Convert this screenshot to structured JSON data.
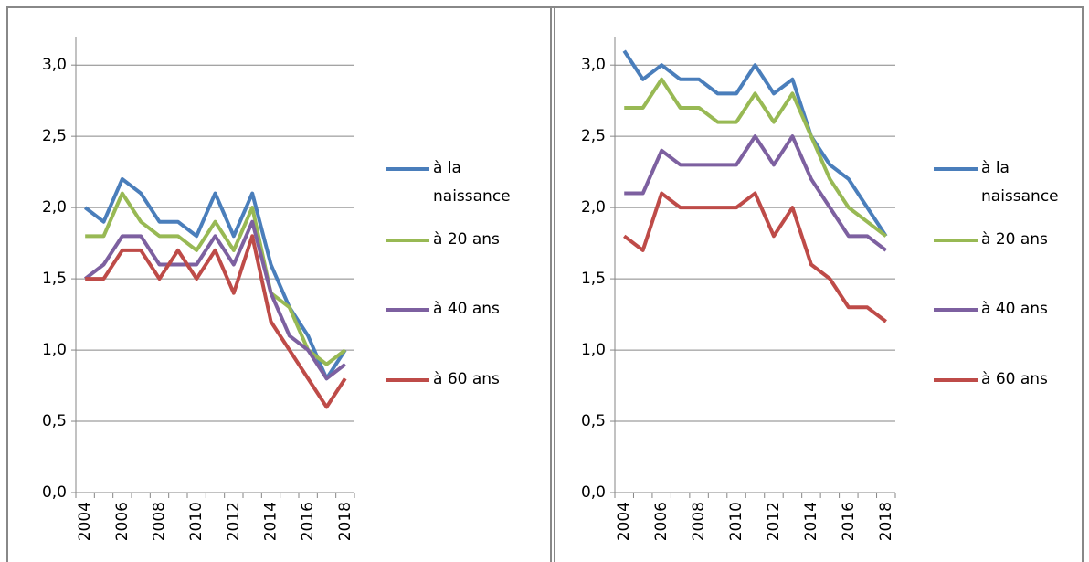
{
  "chart_data": [
    {
      "type": "line",
      "x": [
        2004,
        2005,
        2006,
        2007,
        2008,
        2009,
        2010,
        2011,
        2012,
        2013,
        2014,
        2015,
        2016,
        2017,
        2018
      ],
      "xticks": [
        2004,
        2006,
        2008,
        2010,
        2012,
        2014,
        2016,
        2018
      ],
      "ylim": [
        0,
        3.2
      ],
      "yticks": [
        {
          "value": 0,
          "label": "0,0"
        },
        {
          "value": 0.5,
          "label": "0,5"
        },
        {
          "value": 1,
          "label": "1,0"
        },
        {
          "value": 1.5,
          "label": "1,5"
        },
        {
          "value": 2,
          "label": "2,0"
        },
        {
          "value": 2.5,
          "label": "2,5"
        },
        {
          "value": 3,
          "label": "3,0"
        }
      ],
      "grid": true,
      "series": [
        {
          "name": "à la naissance",
          "color": "#4a7ebb",
          "values": [
            2.0,
            1.9,
            2.2,
            2.1,
            1.9,
            1.9,
            1.8,
            2.1,
            1.8,
            2.1,
            1.6,
            1.3,
            1.1,
            0.8,
            1.0
          ]
        },
        {
          "name": "à 20 ans",
          "color": "#98b954",
          "values": [
            1.8,
            1.8,
            2.1,
            1.9,
            1.8,
            1.8,
            1.7,
            1.9,
            1.7,
            2.0,
            1.4,
            1.3,
            1.0,
            0.9,
            1.0
          ]
        },
        {
          "name": "à 40 ans",
          "color": "#7d60a0",
          "values": [
            1.5,
            1.6,
            1.8,
            1.8,
            1.6,
            1.6,
            1.6,
            1.8,
            1.6,
            1.9,
            1.4,
            1.1,
            1.0,
            0.8,
            0.9
          ]
        },
        {
          "name": "à 60 ans",
          "color": "#be4b48",
          "values": [
            1.5,
            1.5,
            1.7,
            1.7,
            1.5,
            1.7,
            1.5,
            1.7,
            1.4,
            1.8,
            1.2,
            1.0,
            0.8,
            0.6,
            0.8
          ]
        }
      ]
    },
    {
      "type": "line",
      "x": [
        2004,
        2005,
        2006,
        2007,
        2008,
        2009,
        2010,
        2011,
        2012,
        2013,
        2014,
        2015,
        2016,
        2017,
        2018
      ],
      "xticks": [
        2004,
        2006,
        2008,
        2010,
        2012,
        2014,
        2016,
        2018
      ],
      "ylim": [
        0,
        3.2
      ],
      "yticks": [
        {
          "value": 0,
          "label": "0,0"
        },
        {
          "value": 0.5,
          "label": "0,5"
        },
        {
          "value": 1,
          "label": "1,0"
        },
        {
          "value": 1.5,
          "label": "1,5"
        },
        {
          "value": 2,
          "label": "2,0"
        },
        {
          "value": 2.5,
          "label": "2,5"
        },
        {
          "value": 3,
          "label": "3,0"
        }
      ],
      "grid": true,
      "series": [
        {
          "name": "à la naissance",
          "color": "#4a7ebb",
          "values": [
            3.1,
            2.9,
            3.0,
            2.9,
            2.9,
            2.8,
            2.8,
            3.0,
            2.8,
            2.9,
            2.5,
            2.3,
            2.2,
            2.0,
            1.8
          ]
        },
        {
          "name": "à 20 ans",
          "color": "#98b954",
          "values": [
            2.7,
            2.7,
            2.9,
            2.7,
            2.7,
            2.6,
            2.6,
            2.8,
            2.6,
            2.8,
            2.5,
            2.2,
            2.0,
            1.9,
            1.8
          ]
        },
        {
          "name": "à 40 ans",
          "color": "#7d60a0",
          "values": [
            2.1,
            2.1,
            2.4,
            2.3,
            2.3,
            2.3,
            2.3,
            2.5,
            2.3,
            2.5,
            2.2,
            2.0,
            1.8,
            1.8,
            1.7
          ]
        },
        {
          "name": "à 60 ans",
          "color": "#be4b48",
          "values": [
            1.8,
            1.7,
            2.1,
            2.0,
            2.0,
            2.0,
            2.0,
            2.1,
            1.8,
            2.0,
            1.6,
            1.5,
            1.3,
            1.3,
            1.2
          ]
        }
      ]
    }
  ]
}
